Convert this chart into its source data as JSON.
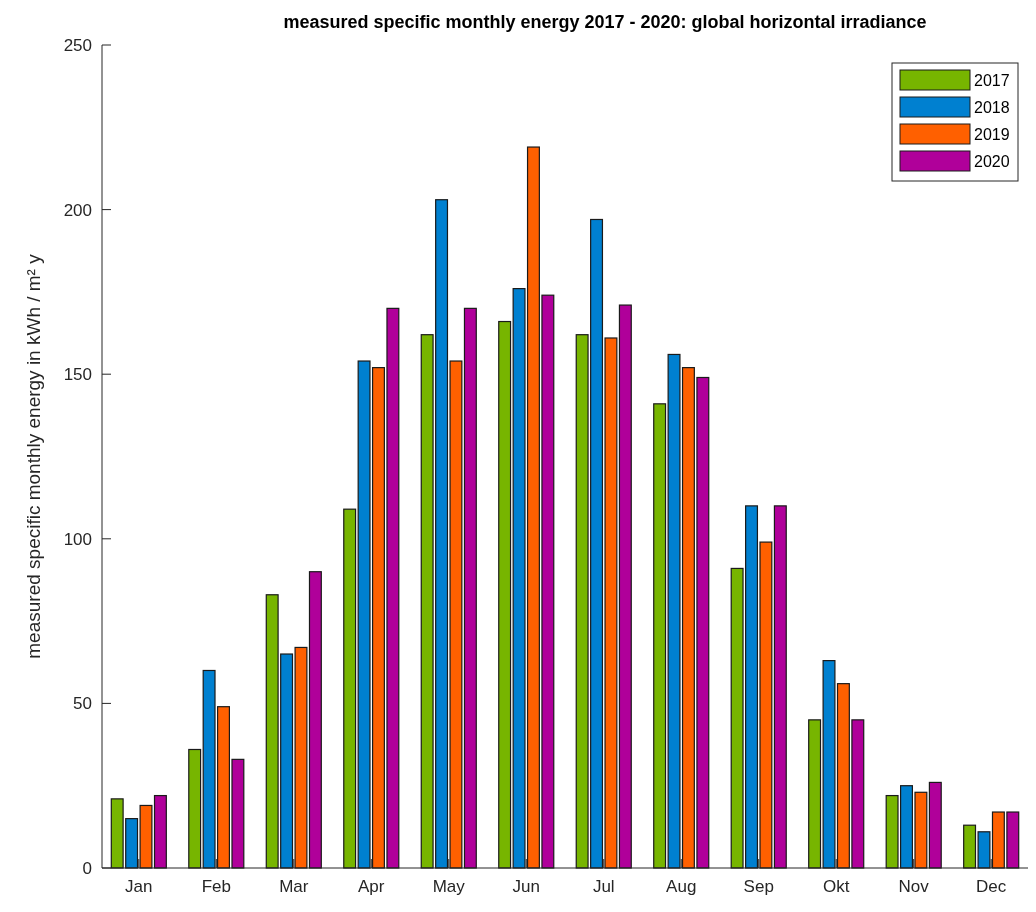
{
  "chart_data": {
    "type": "bar",
    "title": "measured specific monthly energy 2017 - 2020: global horizontal irradiance",
    "ylabel": "measured specific monthly energy in kWh / m² y",
    "categories": [
      "Jan",
      "Feb",
      "Mar",
      "Apr",
      "May",
      "Jun",
      "Jul",
      "Aug",
      "Sep",
      "Okt",
      "Nov",
      "Dec"
    ],
    "series": [
      {
        "name": "2017",
        "color": "#77b500",
        "values": [
          21,
          36,
          83,
          109,
          162,
          166,
          162,
          141,
          91,
          45,
          22,
          13
        ]
      },
      {
        "name": "2018",
        "color": "#0080d0",
        "values": [
          15,
          60,
          65,
          154,
          203,
          176,
          197,
          156,
          110,
          63,
          25,
          11
        ]
      },
      {
        "name": "2019",
        "color": "#ff6000",
        "values": [
          19,
          49,
          67,
          152,
          154,
          219,
          161,
          152,
          99,
          56,
          23,
          17
        ]
      },
      {
        "name": "2020",
        "color": "#b0009a",
        "values": [
          22,
          33,
          90,
          170,
          170,
          174,
          171,
          149,
          110,
          45,
          26,
          17
        ]
      }
    ],
    "ylim": [
      0,
      250
    ],
    "yticks": [
      0,
      50,
      100,
      150,
      200,
      250
    ],
    "grid": false,
    "legend": "top right"
  }
}
